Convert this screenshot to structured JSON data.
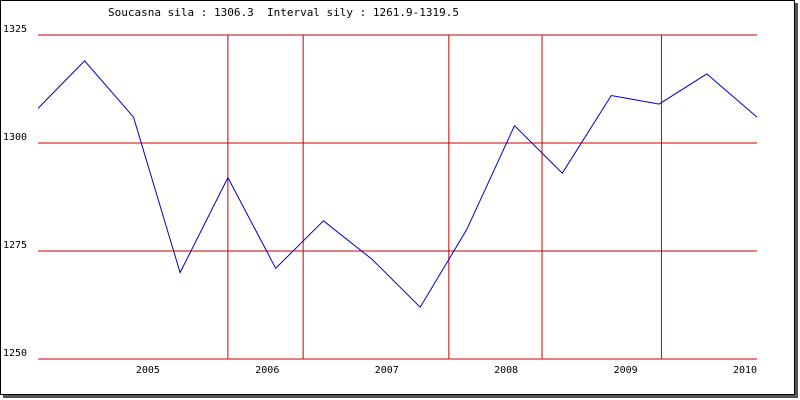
{
  "header": {
    "current_label": "Soucasna sila : 1306.3",
    "interval_label": "Interval sily : 1261.9-1319.5"
  },
  "colors": {
    "line": "#0000cc",
    "grid": "#cc0000",
    "axis_text": "#000000"
  },
  "chart_data": {
    "type": "line",
    "title": "",
    "xlabel": "",
    "ylabel": "",
    "ylim": [
      1250,
      1325
    ],
    "yticks": [
      1250,
      1275,
      1300,
      1325
    ],
    "xlim": [
      2004.08,
      2010.1
    ],
    "x_tick_labels": [
      {
        "label": "2005",
        "x": 2005.0
      },
      {
        "label": "2006",
        "x": 2006.0
      },
      {
        "label": "2007",
        "x": 2007.0
      },
      {
        "label": "2008",
        "x": 2008.0
      },
      {
        "label": "2009",
        "x": 2009.0
      },
      {
        "label": "2010",
        "x": 2010.0
      }
    ],
    "vertical_gridlines_x": [
      2005.67,
      2006.3,
      2007.52,
      2008.3,
      2009.3
    ],
    "series": [
      {
        "values": [
          {
            "x": 2004.08,
            "y": 1308
          },
          {
            "x": 2004.47,
            "y": 1319
          },
          {
            "x": 2004.88,
            "y": 1306
          },
          {
            "x": 2005.27,
            "y": 1270
          },
          {
            "x": 2005.67,
            "y": 1292
          },
          {
            "x": 2006.07,
            "y": 1271
          },
          {
            "x": 2006.47,
            "y": 1282
          },
          {
            "x": 2006.88,
            "y": 1273
          },
          {
            "x": 2007.28,
            "y": 1262
          },
          {
            "x": 2007.67,
            "y": 1280
          },
          {
            "x": 2008.07,
            "y": 1304
          },
          {
            "x": 2008.47,
            "y": 1293
          },
          {
            "x": 2008.88,
            "y": 1311
          },
          {
            "x": 2009.28,
            "y": 1309
          },
          {
            "x": 2009.68,
            "y": 1316
          },
          {
            "x": 2010.1,
            "y": 1306
          }
        ]
      }
    ]
  }
}
